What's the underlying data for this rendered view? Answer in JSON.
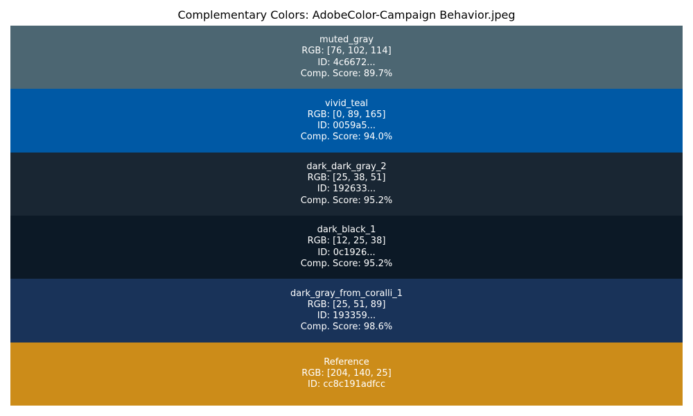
{
  "chart_data": {
    "type": "table",
    "title": "Complementary Colors: AdobeColor-Campaign Behavior.jpeg",
    "swatches": [
      {
        "name": "muted_gray",
        "color": "#4c6672",
        "rgb": "RGB: [76, 102, 114]",
        "id": "ID: 4c6672...",
        "score": "Comp. Score: 89.7%"
      },
      {
        "name": "vivid_teal",
        "color": "#0059a5",
        "rgb": "RGB: [0, 89, 165]",
        "id": "ID: 0059a5...",
        "score": "Comp. Score: 94.0%"
      },
      {
        "name": "dark_dark_gray_2",
        "color": "#192633",
        "rgb": "RGB: [25, 38, 51]",
        "id": "ID: 192633...",
        "score": "Comp. Score: 95.2%"
      },
      {
        "name": "dark_black_1",
        "color": "#0c1926",
        "rgb": "RGB: [12, 25, 38]",
        "id": "ID: 0c1926...",
        "score": "Comp. Score: 95.2%"
      },
      {
        "name": "dark_gray_from_coralli_1",
        "color": "#193359",
        "rgb": "RGB: [25, 51, 89]",
        "id": "ID: 193359...",
        "score": "Comp. Score: 98.6%"
      },
      {
        "name": "Reference",
        "color": "#cc8c19",
        "rgb": "RGB: [204, 140, 25]",
        "id": "ID: cc8c191adfcc",
        "score": null
      }
    ]
  }
}
